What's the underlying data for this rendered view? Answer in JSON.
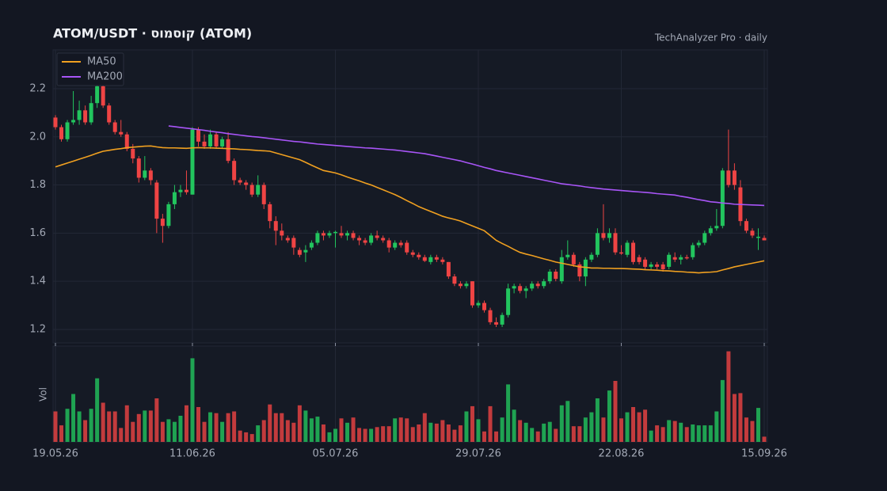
{
  "chart_data": {
    "type": "candlestick",
    "title": "ATOM/USDT  ·  קוסמוס (ATOM)",
    "subtitle": "TechAnalyzer Pro · daily",
    "volume_label": "Vol",
    "up_color": "#22c55e",
    "down_color": "#ef4444",
    "grid": true,
    "legend": "top-left",
    "ylim": [
      1.144,
      2.361
    ],
    "yticks": [
      1.2,
      1.4,
      1.6,
      1.8,
      {
        "value": 2,
        "label": "2.0"
      },
      2.2
    ],
    "vlim": [
      0,
      110
    ],
    "categories": [
      "19.05.26",
      null,
      null,
      null,
      null,
      null,
      null,
      null,
      null,
      null,
      null,
      null,
      null,
      null,
      null,
      null,
      null,
      null,
      null,
      null,
      null,
      null,
      null,
      "11.06.26",
      null,
      null,
      null,
      null,
      null,
      null,
      null,
      null,
      null,
      null,
      null,
      null,
      null,
      null,
      null,
      null,
      null,
      null,
      null,
      null,
      null,
      null,
      null,
      "05.07.26",
      null,
      null,
      null,
      null,
      null,
      null,
      null,
      null,
      null,
      null,
      null,
      null,
      null,
      null,
      null,
      null,
      null,
      null,
      null,
      null,
      null,
      null,
      null,
      "29.07.26",
      null,
      null,
      null,
      null,
      null,
      null,
      null,
      null,
      null,
      null,
      null,
      null,
      null,
      null,
      null,
      null,
      null,
      null,
      null,
      null,
      null,
      null,
      null,
      "22.08.26",
      null,
      null,
      null,
      null,
      null,
      null,
      null,
      null,
      null,
      null,
      null,
      null,
      null,
      null,
      null,
      null,
      null,
      null,
      null,
      null,
      null,
      null,
      null,
      "15.09.26"
    ],
    "open": [
      2.08,
      2.04,
      1.99,
      2.06,
      2.07,
      2.11,
      2.06,
      2.14,
      2.21,
      2.13,
      2.06,
      2.02,
      2.01,
      1.95,
      1.91,
      1.83,
      1.86,
      1.81,
      1.66,
      1.63,
      1.72,
      1.77,
      1.78,
      1.76,
      2.03,
      1.98,
      1.96,
      2.01,
      1.96,
      1.99,
      1.9,
      1.82,
      1.81,
      1.8,
      1.76,
      1.8,
      1.72,
      1.65,
      1.61,
      1.58,
      1.58,
      1.53,
      1.52,
      1.54,
      1.56,
      1.6,
      1.59,
      1.6,
      1.6,
      1.59,
      1.6,
      1.58,
      1.57,
      1.56,
      1.59,
      1.58,
      1.57,
      1.54,
      1.56,
      1.56,
      1.52,
      1.51,
      1.5,
      1.48,
      1.5,
      1.49,
      1.48,
      1.42,
      1.39,
      1.38,
      1.4,
      1.3,
      1.31,
      1.28,
      1.23,
      1.22,
      1.26,
      1.37,
      1.38,
      1.36,
      1.37,
      1.39,
      1.38,
      1.4,
      1.44,
      1.4,
      1.5,
      1.51,
      1.47,
      1.42,
      1.49,
      1.51,
      1.6,
      1.58,
      1.6,
      1.52,
      1.51,
      1.56,
      1.5,
      1.49,
      1.46,
      1.47,
      1.47,
      1.46,
      1.5,
      1.49,
      1.5,
      1.5,
      1.55,
      1.56,
      1.6,
      1.62,
      1.63,
      1.86,
      1.86,
      1.79,
      1.65,
      1.61,
      1.58,
      1.58
    ],
    "high": [
      2.09,
      2.05,
      2.07,
      2.19,
      2.15,
      2.13,
      2.17,
      2.24,
      2.24,
      2.14,
      2.07,
      2.07,
      2.02,
      1.97,
      1.92,
      1.92,
      1.87,
      1.82,
      1.68,
      1.73,
      1.8,
      1.8,
      1.86,
      2.04,
      2.04,
      2.01,
      2.03,
      2.02,
      2.0,
      2.02,
      1.91,
      1.83,
      1.82,
      1.81,
      1.84,
      1.81,
      1.73,
      1.67,
      1.64,
      1.59,
      1.59,
      1.54,
      1.55,
      1.57,
      1.61,
      1.61,
      1.61,
      1.61,
      1.63,
      1.61,
      1.61,
      1.59,
      1.58,
      1.6,
      1.61,
      1.59,
      1.58,
      1.57,
      1.57,
      1.57,
      1.53,
      1.52,
      1.51,
      1.51,
      1.51,
      1.5,
      1.48,
      1.43,
      1.4,
      1.4,
      1.4,
      1.32,
      1.32,
      1.29,
      1.25,
      1.27,
      1.39,
      1.39,
      1.39,
      1.38,
      1.4,
      1.4,
      1.41,
      1.45,
      1.45,
      1.53,
      1.57,
      1.52,
      1.48,
      1.5,
      1.52,
      1.62,
      1.72,
      1.62,
      1.62,
      1.55,
      1.57,
      1.57,
      1.51,
      1.5,
      1.48,
      1.48,
      1.48,
      1.52,
      1.52,
      1.51,
      1.51,
      1.56,
      1.57,
      1.61,
      1.63,
      1.7,
      1.87,
      2.03,
      1.89,
      1.82,
      1.66,
      1.62,
      1.62,
      1.59
    ],
    "low": [
      2.03,
      1.98,
      1.98,
      2.05,
      2.05,
      2.05,
      2.05,
      2.12,
      2.12,
      2.05,
      2.01,
      2.0,
      1.94,
      1.89,
      1.81,
      1.82,
      1.8,
      1.6,
      1.56,
      1.62,
      1.7,
      1.75,
      1.76,
      1.76,
      1.96,
      1.95,
      1.95,
      1.95,
      1.95,
      1.89,
      1.8,
      1.8,
      1.78,
      1.75,
      1.75,
      1.7,
      1.62,
      1.55,
      1.57,
      1.56,
      1.51,
      1.5,
      1.48,
      1.53,
      1.55,
      1.57,
      1.58,
      1.54,
      1.58,
      1.57,
      1.57,
      1.55,
      1.55,
      1.55,
      1.57,
      1.56,
      1.52,
      1.53,
      1.54,
      1.51,
      1.5,
      1.49,
      1.48,
      1.47,
      1.48,
      1.47,
      1.41,
      1.38,
      1.37,
      1.37,
      1.29,
      1.29,
      1.27,
      1.22,
      1.21,
      1.21,
      1.25,
      1.35,
      1.35,
      1.33,
      1.36,
      1.37,
      1.37,
      1.39,
      1.4,
      1.39,
      1.49,
      1.46,
      1.4,
      1.38,
      1.48,
      1.5,
      1.57,
      1.56,
      1.51,
      1.51,
      1.5,
      1.47,
      1.47,
      1.45,
      1.45,
      1.45,
      1.44,
      1.45,
      1.48,
      1.47,
      1.49,
      1.49,
      1.54,
      1.55,
      1.59,
      1.61,
      1.62,
      1.79,
      1.78,
      1.63,
      1.6,
      1.58,
      1.53,
      1.57
    ],
    "close": [
      2.04,
      1.99,
      2.06,
      2.07,
      2.11,
      2.06,
      2.14,
      2.21,
      2.13,
      2.06,
      2.02,
      2.01,
      1.95,
      1.91,
      1.83,
      1.86,
      1.82,
      1.66,
      1.63,
      1.72,
      1.77,
      1.78,
      1.77,
      2.03,
      1.98,
      1.96,
      2.01,
      1.96,
      1.99,
      1.9,
      1.82,
      1.81,
      1.8,
      1.76,
      1.8,
      1.72,
      1.65,
      1.61,
      1.59,
      1.57,
      1.54,
      1.51,
      1.53,
      1.56,
      1.6,
      1.59,
      1.6,
      1.605,
      1.59,
      1.6,
      1.58,
      1.57,
      1.56,
      1.59,
      1.58,
      1.57,
      1.54,
      1.56,
      1.55,
      1.52,
      1.51,
      1.5,
      1.485,
      1.5,
      1.49,
      1.48,
      1.42,
      1.39,
      1.38,
      1.39,
      1.3,
      1.31,
      1.28,
      1.23,
      1.22,
      1.26,
      1.37,
      1.38,
      1.36,
      1.37,
      1.39,
      1.38,
      1.4,
      1.44,
      1.41,
      1.5,
      1.51,
      1.47,
      1.42,
      1.49,
      1.51,
      1.6,
      1.58,
      1.6,
      1.52,
      1.515,
      1.56,
      1.48,
      1.48,
      1.46,
      1.47,
      1.46,
      1.45,
      1.51,
      1.49,
      1.5,
      1.495,
      1.55,
      1.56,
      1.6,
      1.62,
      1.63,
      1.86,
      1.8,
      1.8,
      1.65,
      1.61,
      1.59,
      1.585,
      1.57
    ],
    "volume": [
      35,
      19,
      38,
      55,
      35,
      25,
      38,
      73,
      45,
      35,
      35,
      16,
      42,
      23,
      32,
      36,
      36,
      50,
      23,
      26,
      23,
      30,
      42,
      96,
      40,
      23,
      34,
      33,
      23,
      33,
      35,
      13,
      11,
      9,
      19,
      25,
      43,
      33,
      33,
      25,
      22,
      42,
      36,
      27,
      29,
      20,
      11,
      15,
      27,
      22,
      28,
      16,
      15,
      15,
      17,
      18,
      18,
      27,
      28,
      27,
      17,
      20,
      33,
      22,
      21,
      25,
      20,
      14,
      19,
      35,
      41,
      26,
      12,
      41,
      12,
      28,
      66,
      37,
      25,
      22,
      16,
      12,
      21,
      23,
      15,
      42,
      47,
      18,
      18,
      28,
      34,
      50,
      28,
      59,
      70,
      27,
      34,
      40,
      34,
      37,
      13,
      19,
      17,
      25,
      24,
      22,
      17,
      20,
      19,
      19,
      19,
      35,
      71,
      104,
      55,
      56,
      28,
      24,
      39,
      6
    ],
    "lines": [
      {
        "name": "MA50",
        "color": "#f0a020",
        "values": [
          1.875,
          1.883,
          1.891,
          1.899,
          1.907,
          1.915,
          1.923,
          1.932,
          1.94,
          1.944,
          1.948,
          1.951,
          1.955,
          1.957,
          1.959,
          1.961,
          1.962,
          1.958,
          1.955,
          1.954,
          1.954,
          1.953,
          1.952,
          1.954,
          1.955,
          1.954,
          1.954,
          1.953,
          1.952,
          1.951,
          1.95,
          1.948,
          1.947,
          1.945,
          1.943,
          1.942,
          1.94,
          1.933,
          1.926,
          1.919,
          1.912,
          1.905,
          1.894,
          1.882,
          1.871,
          1.86,
          1.855,
          1.85,
          1.842,
          1.833,
          1.825,
          1.817,
          1.808,
          1.8,
          1.79,
          1.78,
          1.77,
          1.76,
          1.748,
          1.735,
          1.723,
          1.71,
          1.7,
          1.69,
          1.68,
          1.67,
          1.663,
          1.657,
          1.65,
          1.64,
          1.63,
          1.62,
          1.61,
          1.59,
          1.57,
          1.557,
          1.545,
          1.532,
          1.52,
          1.513,
          1.507,
          1.5,
          1.493,
          1.487,
          1.48,
          1.475,
          1.47,
          1.465,
          1.46,
          1.458,
          1.455,
          1.455,
          1.454,
          1.454,
          1.453,
          1.453,
          1.452,
          1.451,
          1.45,
          1.448,
          1.447,
          1.446,
          1.444,
          1.443,
          1.441,
          1.44,
          1.438,
          1.437,
          1.435,
          1.437,
          1.438,
          1.44,
          1.447,
          1.453,
          1.46,
          1.465,
          1.47,
          1.475,
          1.48,
          1.485
        ]
      },
      {
        "name": "MA200",
        "color": "#a855f7",
        "values": [
          null,
          null,
          null,
          null,
          null,
          null,
          null,
          null,
          null,
          null,
          null,
          null,
          null,
          null,
          null,
          null,
          null,
          null,
          null,
          2.045,
          2.042,
          2.039,
          2.036,
          2.033,
          2.03,
          2.027,
          2.023,
          2.02,
          2.017,
          2.013,
          2.01,
          2.007,
          2.004,
          2.001,
          1.999,
          1.996,
          1.993,
          1.99,
          1.987,
          1.984,
          1.981,
          1.979,
          1.976,
          1.973,
          1.97,
          1.968,
          1.966,
          1.964,
          1.962,
          1.96,
          1.958,
          1.956,
          1.954,
          1.953,
          1.951,
          1.949,
          1.947,
          1.945,
          1.942,
          1.939,
          1.936,
          1.933,
          1.93,
          1.925,
          1.92,
          1.915,
          1.91,
          1.905,
          1.9,
          1.893,
          1.887,
          1.88,
          1.873,
          1.867,
          1.86,
          1.855,
          1.85,
          1.845,
          1.84,
          1.835,
          1.83,
          1.825,
          1.82,
          1.815,
          1.81,
          1.805,
          1.802,
          1.799,
          1.796,
          1.792,
          1.789,
          1.786,
          1.783,
          1.781,
          1.779,
          1.777,
          1.775,
          1.773,
          1.771,
          1.769,
          1.767,
          1.764,
          1.762,
          1.76,
          1.758,
          1.753,
          1.749,
          1.744,
          1.739,
          1.735,
          1.73,
          1.728,
          1.725,
          1.723,
          1.72,
          1.719,
          1.718,
          1.717,
          1.716,
          1.715
        ]
      }
    ]
  }
}
